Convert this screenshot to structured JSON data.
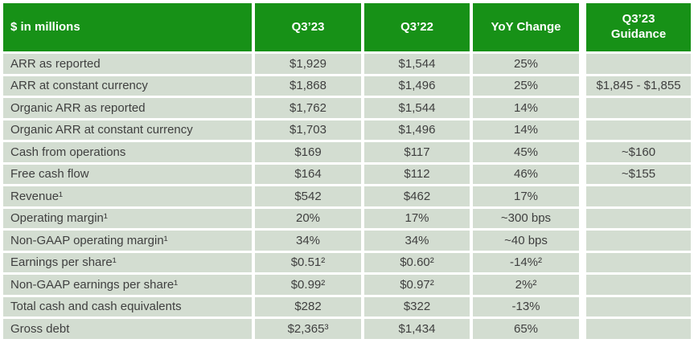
{
  "colors": {
    "header_green": "#179117",
    "header_text": "#ffffff",
    "row_background": "#d3ddd1",
    "body_text": "#3f3f3f",
    "separator": "#ffffff"
  },
  "table": {
    "columns": [
      "$ in millions",
      "Q3’23",
      "Q3’22",
      "YoY Change"
    ],
    "rows": [
      {
        "label": "ARR as reported",
        "q323": "$1,929",
        "q322": "$1,544",
        "yoy": "25%",
        "guidance": ""
      },
      {
        "label": "ARR at constant currency",
        "q323": "$1,868",
        "q322": "$1,496",
        "yoy": "25%",
        "guidance": "$1,845 - $1,855"
      },
      {
        "label": "Organic ARR as reported",
        "q323": "$1,762",
        "q322": "$1,544",
        "yoy": "14%",
        "guidance": ""
      },
      {
        "label": "Organic ARR at constant currency",
        "q323": "$1,703",
        "q322": "$1,496",
        "yoy": "14%",
        "guidance": ""
      },
      {
        "label": "Cash from operations",
        "q323": "$169",
        "q322": "$117",
        "yoy": "45%",
        "guidance": "~$160"
      },
      {
        "label": "Free cash flow",
        "q323": "$164",
        "q322": "$112",
        "yoy": "46%",
        "guidance": "~$155"
      },
      {
        "label": "Revenue¹",
        "q323": "$542",
        "q322": "$462",
        "yoy": "17%",
        "guidance": ""
      },
      {
        "label": "Operating margin¹",
        "q323": "20%",
        "q322": "17%",
        "yoy": "~300 bps",
        "guidance": ""
      },
      {
        "label": "Non-GAAP operating margin¹",
        "q323": "34%",
        "q322": "34%",
        "yoy": "~40 bps",
        "guidance": ""
      },
      {
        "label": "Earnings per share¹",
        "q323": "$0.51²",
        "q322": "$0.60²",
        "yoy": "-14%²",
        "guidance": ""
      },
      {
        "label": "Non-GAAP earnings per share¹",
        "q323": "$0.99²",
        "q322": "$0.97²",
        "yoy": "2%²",
        "guidance": ""
      },
      {
        "label": "Total cash and cash equivalents",
        "q323": "$282",
        "q322": "$322",
        "yoy": "-13%",
        "guidance": ""
      },
      {
        "label": "Gross debt",
        "q323": "$2,365³",
        "q322": "$1,434",
        "yoy": "65%",
        "guidance": ""
      }
    ]
  },
  "guidance": {
    "header_line1": "Q3’23",
    "header_line2": "Guidance"
  }
}
